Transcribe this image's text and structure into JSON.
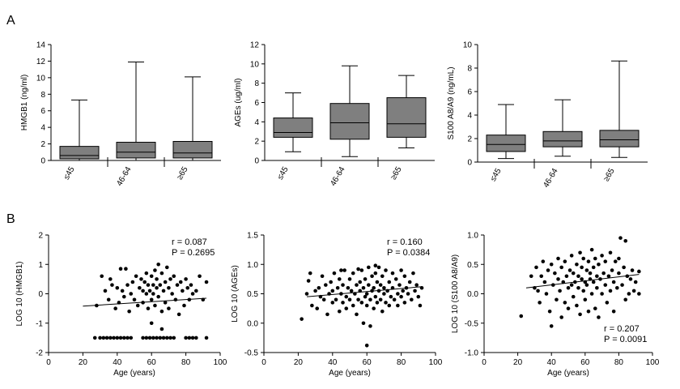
{
  "panels": [
    {
      "label": "A"
    },
    {
      "label": "B"
    }
  ],
  "chart_data": [
    {
      "type": "box",
      "ylabel": "HMGB1 (ng/ml)",
      "ylim": [
        0,
        14
      ],
      "yticks": [
        0,
        2,
        4,
        6,
        8,
        10,
        12,
        14
      ],
      "categories": [
        "≤45",
        "46-64",
        "≥65"
      ],
      "boxes": [
        {
          "min": 0,
          "q1": 0.2,
          "median": 0.6,
          "q3": 1.7,
          "max": 7.3
        },
        {
          "min": 0,
          "q1": 0.3,
          "median": 1.0,
          "q3": 2.2,
          "max": 11.9
        },
        {
          "min": 0,
          "q1": 0.3,
          "median": 0.9,
          "q3": 2.3,
          "max": 10.1
        }
      ]
    },
    {
      "type": "box",
      "ylabel": "AGEs (ug/ml)",
      "ylim": [
        0,
        12
      ],
      "yticks": [
        0,
        2,
        4,
        6,
        8,
        10,
        12
      ],
      "categories": [
        "≤45",
        "46-64",
        "≥65"
      ],
      "boxes": [
        {
          "min": 0.9,
          "q1": 2.4,
          "median": 2.9,
          "q3": 4.4,
          "max": 7.0
        },
        {
          "min": 0.4,
          "q1": 2.2,
          "median": 3.9,
          "q3": 5.9,
          "max": 9.8
        },
        {
          "min": 1.3,
          "q1": 2.4,
          "median": 3.8,
          "q3": 6.5,
          "max": 8.8
        }
      ]
    },
    {
      "type": "box",
      "ylabel": "S100 A8/A9 (ng/mL)",
      "ylim": [
        0,
        10
      ],
      "yticks": [
        0,
        2,
        4,
        6,
        8,
        10
      ],
      "categories": [
        "≤45",
        "46-64",
        "≥65"
      ],
      "boxes": [
        {
          "min": 0.3,
          "q1": 0.9,
          "median": 1.5,
          "q3": 2.3,
          "max": 4.9
        },
        {
          "min": 0.5,
          "q1": 1.3,
          "median": 1.8,
          "q3": 2.6,
          "max": 5.3
        },
        {
          "min": 0.4,
          "q1": 1.3,
          "median": 1.9,
          "q3": 2.7,
          "max": 8.6
        }
      ]
    },
    {
      "type": "scatter",
      "xlabel": "Age (years)",
      "ylabel": "LOG 10 (HMGB1)",
      "xlim": [
        0,
        100
      ],
      "ylim": [
        -2,
        2
      ],
      "xticks": [
        0,
        20,
        40,
        60,
        80,
        100
      ],
      "yticks": [
        -2,
        -1,
        0,
        1,
        2
      ],
      "r_text": "r  = 0.087",
      "p_text": "P  = 0.2695",
      "fit": {
        "x1": 20,
        "y1": -0.42,
        "x2": 92,
        "y2": -0.15
      },
      "points": [
        [
          27,
          -1.5
        ],
        [
          30,
          -1.5
        ],
        [
          32,
          -1.5
        ],
        [
          34,
          -1.5
        ],
        [
          36,
          -1.5
        ],
        [
          38,
          -1.5
        ],
        [
          40,
          -1.5
        ],
        [
          42,
          -1.5
        ],
        [
          44,
          -1.5
        ],
        [
          46,
          -1.5
        ],
        [
          48,
          -1.5
        ],
        [
          55,
          -1.5
        ],
        [
          57,
          -1.5
        ],
        [
          59,
          -1.5
        ],
        [
          61,
          -1.5
        ],
        [
          63,
          -1.5
        ],
        [
          65,
          -1.5
        ],
        [
          67,
          -1.5
        ],
        [
          69,
          -1.5
        ],
        [
          71,
          -1.5
        ],
        [
          73,
          -1.5
        ],
        [
          80,
          -1.5
        ],
        [
          82,
          -1.5
        ],
        [
          84,
          -1.5
        ],
        [
          86,
          -1.5
        ],
        [
          92,
          -1.5
        ],
        [
          66,
          -1.2
        ],
        [
          60,
          -1.0
        ],
        [
          28,
          -0.4
        ],
        [
          31,
          0.6
        ],
        [
          33,
          0.1
        ],
        [
          35,
          -0.2
        ],
        [
          36,
          0.5
        ],
        [
          37,
          0.3
        ],
        [
          39,
          -0.5
        ],
        [
          40,
          0.2
        ],
        [
          41,
          -0.3
        ],
        [
          42,
          0.85
        ],
        [
          43,
          0.1
        ],
        [
          44,
          -0.1
        ],
        [
          45,
          0.85
        ],
        [
          46,
          0.3
        ],
        [
          47,
          -0.6
        ],
        [
          48,
          0.0
        ],
        [
          49,
          0.4
        ],
        [
          50,
          -0.2
        ],
        [
          51,
          0.6
        ],
        [
          52,
          -0.4
        ],
        [
          53,
          0.2
        ],
        [
          54,
          0.5
        ],
        [
          55,
          -0.3
        ],
        [
          55,
          0.1
        ],
        [
          56,
          0.4
        ],
        [
          57,
          0.0
        ],
        [
          57,
          0.7
        ],
        [
          58,
          -0.5
        ],
        [
          58,
          0.3
        ],
        [
          59,
          0.1
        ],
        [
          60,
          0.6
        ],
        [
          60,
          -0.2
        ],
        [
          61,
          0.3
        ],
        [
          61,
          0.0
        ],
        [
          62,
          0.8
        ],
        [
          62,
          -0.4
        ],
        [
          63,
          0.2
        ],
        [
          63,
          0.5
        ],
        [
          64,
          1.0
        ],
        [
          64,
          -0.1
        ],
        [
          65,
          0.3
        ],
        [
          66,
          0.7
        ],
        [
          66,
          -0.6
        ],
        [
          67,
          0.1
        ],
        [
          68,
          0.4
        ],
        [
          68,
          -0.3
        ],
        [
          69,
          0.9
        ],
        [
          70,
          0.2
        ],
        [
          70,
          -0.5
        ],
        [
          71,
          0.5
        ],
        [
          72,
          0.0
        ],
        [
          73,
          0.6
        ],
        [
          74,
          -0.2
        ],
        [
          75,
          0.3
        ],
        [
          76,
          -0.7
        ],
        [
          77,
          0.4
        ],
        [
          78,
          0.1
        ],
        [
          79,
          -0.4
        ],
        [
          80,
          0.5
        ],
        [
          81,
          0.2
        ],
        [
          82,
          -0.2
        ],
        [
          83,
          0.3
        ],
        [
          84,
          0.0
        ],
        [
          86,
          0.1
        ],
        [
          88,
          0.6
        ],
        [
          90,
          -0.2
        ],
        [
          92,
          0.4
        ]
      ]
    },
    {
      "type": "scatter",
      "xlabel": "Age (years)",
      "ylabel": "LOG 10 (AGEs)",
      "xlim": [
        0,
        100
      ],
      "ylim": [
        -0.5,
        1.5
      ],
      "xticks": [
        0,
        20,
        40,
        60,
        80,
        100
      ],
      "yticks": [
        -0.5,
        0.0,
        0.5,
        1.0,
        1.5
      ],
      "r_text": "r  = 0.160",
      "p_text": "P  = 0.0384",
      "fit": {
        "x1": 25,
        "y1": 0.45,
        "x2": 92,
        "y2": 0.62
      },
      "points": [
        [
          22,
          0.07
        ],
        [
          25,
          0.5
        ],
        [
          26,
          0.72
        ],
        [
          27,
          0.85
        ],
        [
          28,
          0.3
        ],
        [
          30,
          0.55
        ],
        [
          31,
          0.25
        ],
        [
          32,
          0.6
        ],
        [
          33,
          0.45
        ],
        [
          34,
          0.8
        ],
        [
          35,
          0.4
        ],
        [
          36,
          0.65
        ],
        [
          37,
          0.15
        ],
        [
          38,
          0.5
        ],
        [
          39,
          0.7
        ],
        [
          40,
          0.35
        ],
        [
          40,
          0.55
        ],
        [
          41,
          0.85
        ],
        [
          42,
          0.4
        ],
        [
          43,
          0.6
        ],
        [
          44,
          0.2
        ],
        [
          44,
          0.75
        ],
        [
          45,
          0.5
        ],
        [
          46,
          0.35
        ],
        [
          46,
          0.65
        ],
        [
          47,
          0.9
        ],
        [
          48,
          0.45
        ],
        [
          48,
          0.25
        ],
        [
          49,
          0.6
        ],
        [
          50,
          0.75
        ],
        [
          50,
          0.4
        ],
        [
          51,
          0.55
        ],
        [
          52,
          0.3
        ],
        [
          52,
          0.85
        ],
        [
          53,
          0.5
        ],
        [
          54,
          0.65
        ],
        [
          54,
          0.15
        ],
        [
          55,
          0.4
        ],
        [
          56,
          0.7
        ],
        [
          56,
          0.55
        ],
        [
          57,
          0.35
        ],
        [
          57,
          0.9
        ],
        [
          58,
          0.6
        ],
        [
          58,
          0.0
        ],
        [
          59,
          0.45
        ],
        [
          59,
          0.75
        ],
        [
          60,
          0.5
        ],
        [
          60,
          0.3
        ],
        [
          61,
          0.95
        ],
        [
          61,
          0.65
        ],
        [
          62,
          -0.05
        ],
        [
          62,
          0.4
        ],
        [
          63,
          0.55
        ],
        [
          63,
          0.8
        ],
        [
          64,
          0.25
        ],
        [
          64,
          0.6
        ],
        [
          65,
          0.45
        ],
        [
          65,
          0.85
        ],
        [
          66,
          0.7
        ],
        [
          66,
          0.35
        ],
        [
          67,
          0.55
        ],
        [
          67,
          0.95
        ],
        [
          68,
          0.4
        ],
        [
          68,
          0.65
        ],
        [
          69,
          0.2
        ],
        [
          69,
          0.8
        ],
        [
          70,
          0.5
        ],
        [
          70,
          0.6
        ],
        [
          71,
          0.35
        ],
        [
          71,
          0.9
        ],
        [
          72,
          0.55
        ],
        [
          73,
          0.7
        ],
        [
          73,
          0.3
        ],
        [
          74,
          0.45
        ],
        [
          75,
          0.85
        ],
        [
          75,
          0.6
        ],
        [
          76,
          0.4
        ],
        [
          77,
          0.75
        ],
        [
          78,
          0.5
        ],
        [
          78,
          0.3
        ],
        [
          79,
          0.65
        ],
        [
          80,
          0.9
        ],
        [
          80,
          0.45
        ],
        [
          81,
          0.55
        ],
        [
          82,
          0.8
        ],
        [
          82,
          0.35
        ],
        [
          83,
          0.6
        ],
        [
          84,
          0.5
        ],
        [
          85,
          0.7
        ],
        [
          86,
          0.4
        ],
        [
          87,
          0.85
        ],
        [
          88,
          0.55
        ],
        [
          89,
          0.65
        ],
        [
          90,
          0.45
        ],
        [
          91,
          0.3
        ],
        [
          92,
          0.6
        ],
        [
          60,
          -0.38
        ],
        [
          45,
          0.9
        ],
        [
          55,
          0.92
        ],
        [
          65,
          0.98
        ]
      ]
    },
    {
      "type": "scatter",
      "xlabel": "Age (years)",
      "ylabel": "LOG 10 (S100 A8/A9)",
      "xlim": [
        0,
        100
      ],
      "ylim": [
        -1.0,
        1.0
      ],
      "xticks": [
        0,
        20,
        40,
        60,
        80,
        100
      ],
      "yticks": [
        -1.0,
        -0.5,
        0.0,
        0.5,
        1.0
      ],
      "r_text": "r  = 0.207",
      "p_text": "P  = 0.0091",
      "fit": {
        "x1": 25,
        "y1": 0.1,
        "x2": 92,
        "y2": 0.33
      },
      "points": [
        [
          22,
          -0.38
        ],
        [
          28,
          0.3
        ],
        [
          30,
          0.1
        ],
        [
          31,
          0.45
        ],
        [
          32,
          0.05
        ],
        [
          33,
          -0.15
        ],
        [
          34,
          0.3
        ],
        [
          35,
          0.55
        ],
        [
          36,
          0.2
        ],
        [
          37,
          0.0
        ],
        [
          38,
          0.4
        ],
        [
          39,
          -0.3
        ],
        [
          40,
          0.5
        ],
        [
          40,
          -0.55
        ],
        [
          41,
          0.15
        ],
        [
          42,
          0.35
        ],
        [
          43,
          -0.1
        ],
        [
          44,
          0.6
        ],
        [
          44,
          0.25
        ],
        [
          45,
          0.05
        ],
        [
          46,
          -0.4
        ],
        [
          46,
          0.45
        ],
        [
          47,
          0.2
        ],
        [
          48,
          -0.15
        ],
        [
          48,
          0.55
        ],
        [
          49,
          0.3
        ],
        [
          50,
          0.1
        ],
        [
          50,
          -0.25
        ],
        [
          51,
          0.4
        ],
        [
          52,
          0.15
        ],
        [
          52,
          0.65
        ],
        [
          53,
          -0.05
        ],
        [
          53,
          0.35
        ],
        [
          54,
          0.2
        ],
        [
          55,
          0.5
        ],
        [
          55,
          -0.2
        ],
        [
          56,
          0.1
        ],
        [
          56,
          0.3
        ],
        [
          57,
          0.7
        ],
        [
          57,
          -0.35
        ],
        [
          58,
          0.25
        ],
        [
          58,
          0.45
        ],
        [
          59,
          0.05
        ],
        [
          59,
          0.6
        ],
        [
          60,
          0.2
        ],
        [
          60,
          -0.1
        ],
        [
          61,
          0.4
        ],
        [
          61,
          0.15
        ],
        [
          62,
          0.55
        ],
        [
          62,
          -0.3
        ],
        [
          63,
          0.25
        ],
        [
          63,
          0.35
        ],
        [
          64,
          0.75
        ],
        [
          64,
          0.0
        ],
        [
          65,
          0.45
        ],
        [
          65,
          0.2
        ],
        [
          66,
          -0.25
        ],
        [
          66,
          0.6
        ],
        [
          67,
          0.3
        ],
        [
          67,
          0.1
        ],
        [
          68,
          0.5
        ],
        [
          68,
          -0.4
        ],
        [
          69,
          0.25
        ],
        [
          70,
          0.65
        ],
        [
          70,
          0.0
        ],
        [
          71,
          0.35
        ],
        [
          72,
          0.15
        ],
        [
          72,
          0.55
        ],
        [
          73,
          -0.15
        ],
        [
          74,
          0.3
        ],
        [
          75,
          0.7
        ],
        [
          75,
          0.05
        ],
        [
          76,
          0.4
        ],
        [
          77,
          0.2
        ],
        [
          77,
          -0.3
        ],
        [
          78,
          0.55
        ],
        [
          79,
          0.1
        ],
        [
          80,
          0.35
        ],
        [
          80,
          0.6
        ],
        [
          81,
          0.95
        ],
        [
          82,
          0.15
        ],
        [
          83,
          0.45
        ],
        [
          84,
          0.9
        ],
        [
          84,
          -0.1
        ],
        [
          85,
          0.3
        ],
        [
          86,
          0.0
        ],
        [
          87,
          0.25
        ],
        [
          88,
          0.4
        ],
        [
          89,
          0.05
        ],
        [
          90,
          0.2
        ],
        [
          92,
          0.38
        ],
        [
          92,
          0.0
        ]
      ]
    }
  ]
}
